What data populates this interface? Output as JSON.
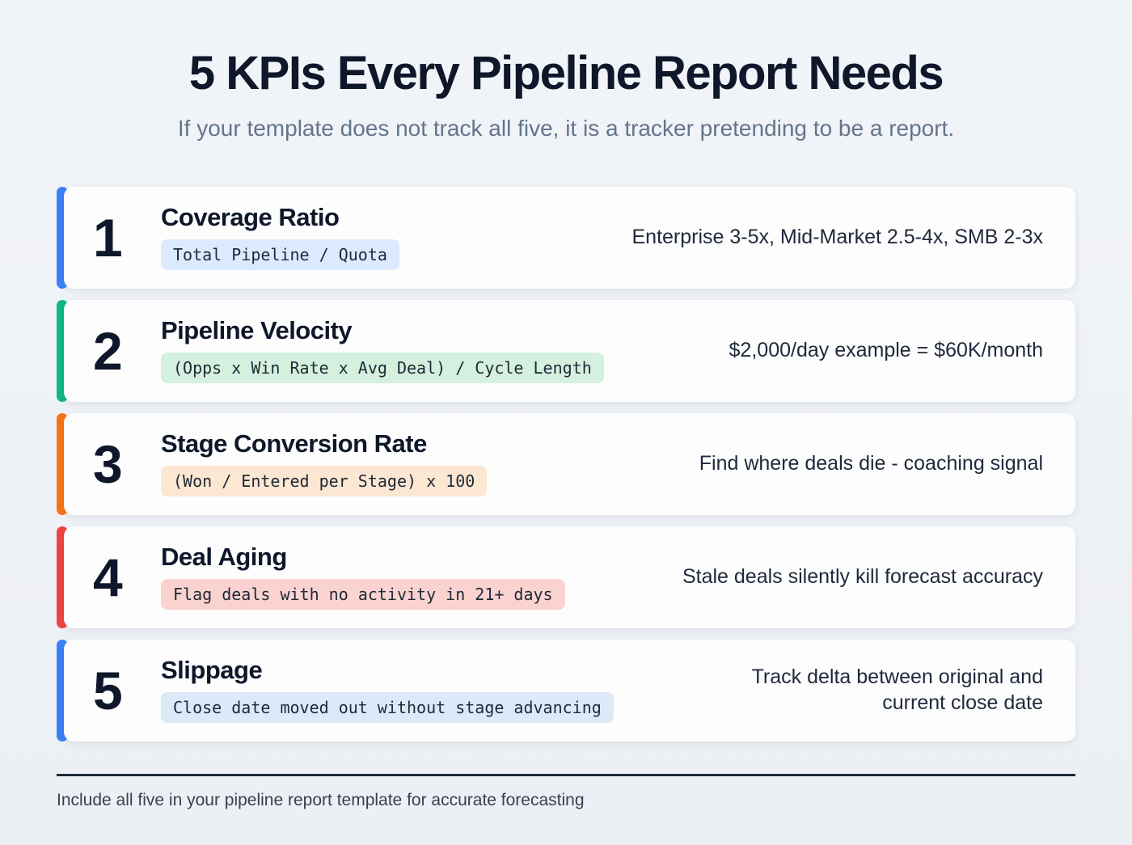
{
  "page": {
    "title": "5 KPIs Every Pipeline Report Needs",
    "subtitle": "If your template does not track all five, it is a tracker pretending to be a report.",
    "footer": "Include all five in your pipeline report template for accurate forecasting",
    "divider_color": "#1e293b",
    "background_color": "#eef1f5"
  },
  "kpis": [
    {
      "number": "1",
      "title": "Coverage Ratio",
      "formula": "Total Pipeline / Quota",
      "note": "Enterprise 3-5x, Mid-Market 2.5-4x, SMB 2-3x",
      "accent_color": "#3b82f6",
      "badge_bg": "#dbeafe"
    },
    {
      "number": "2",
      "title": "Pipeline Velocity",
      "formula": "(Opps x Win Rate x Avg Deal) / Cycle Length",
      "note": "$2,000/day example = $60K/month",
      "accent_color": "#10b981",
      "badge_bg": "#d4f0de"
    },
    {
      "number": "3",
      "title": "Stage Conversion Rate",
      "formula": "(Won / Entered per Stage) x 100",
      "note": "Find where deals die - coaching signal",
      "accent_color": "#f97316",
      "badge_bg": "#fbe7d2"
    },
    {
      "number": "4",
      "title": "Deal Aging",
      "formula": "Flag deals with no activity in 21+ days",
      "note": "Stale deals silently kill forecast accuracy",
      "accent_color": "#ef4444",
      "badge_bg": "#fad3d0"
    },
    {
      "number": "5",
      "title": "Slippage",
      "formula": "Close date moved out without stage advancing",
      "note": "Track delta between original and current close date",
      "accent_color": "#3b82f6",
      "badge_bg": "#dbe9f8"
    }
  ]
}
